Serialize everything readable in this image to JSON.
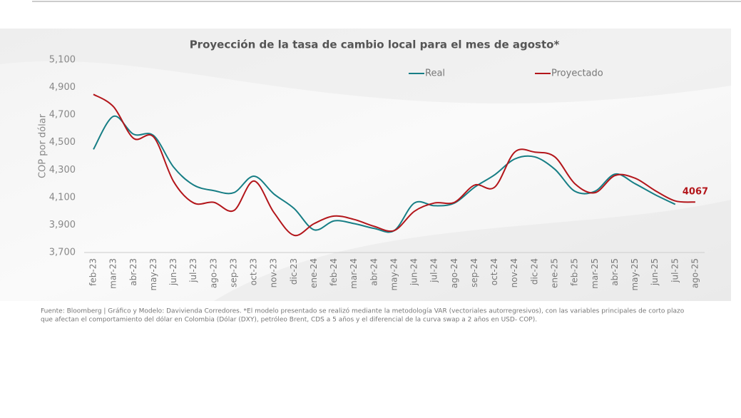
{
  "chart_data": {
    "type": "line",
    "title": "Proyección de la tasa de cambio local para el mes de agosto*",
    "y_label": "COP por dólar",
    "categories": [
      "feb-23",
      "mar-23",
      "abr-23",
      "may-23",
      "jun-23",
      "jul-23",
      "ago-23",
      "sep-23",
      "oct-23",
      "nov-23",
      "dic-23",
      "ene-24",
      "feb-24",
      "mar-24",
      "abr-24",
      "may-24",
      "jun-24",
      "jul-24",
      "ago-24",
      "sep-24",
      "oct-24",
      "nov-24",
      "dic-24",
      "ene-25",
      "feb-25",
      "mar-25",
      "abr-25",
      "may-25",
      "jun-25",
      "jul-25",
      "ago-25"
    ],
    "series": [
      {
        "name": "Real",
        "color": "#177e85",
        "values": [
          4450,
          4690,
          4560,
          4550,
          4320,
          4190,
          4150,
          4135,
          4255,
          4125,
          4020,
          3865,
          3930,
          3910,
          3875,
          3860,
          4060,
          4040,
          4060,
          4175,
          4265,
          4380,
          4395,
          4305,
          4145,
          4145,
          4270,
          4200,
          4120,
          4050,
          null
        ]
      },
      {
        "name": "Proyectado",
        "color": "#b3161b",
        "values": [
          4850,
          4760,
          4530,
          4540,
          4215,
          4060,
          4065,
          4005,
          4220,
          3990,
          3825,
          3910,
          3965,
          3940,
          3890,
          3860,
          4000,
          4060,
          4065,
          4190,
          4175,
          4430,
          4430,
          4395,
          4200,
          4135,
          4260,
          4240,
          4150,
          4075,
          4067
        ]
      }
    ],
    "ylim": [
      3700,
      5100
    ],
    "yticks": [
      {
        "value": 3700,
        "label": "3,700"
      },
      {
        "value": 3900,
        "label": "3,900"
      },
      {
        "value": 4100,
        "label": "4,100"
      },
      {
        "value": 4300,
        "label": "4,300"
      },
      {
        "value": 4500,
        "label": "4,500"
      },
      {
        "value": 4700,
        "label": "4,700"
      },
      {
        "value": 4900,
        "label": "4,900"
      },
      {
        "value": 5100,
        "label": "5,100"
      }
    ],
    "grid": false,
    "footnote": [
      "Fuente: Bloomberg | Gráfico y Modelo: Davivienda Corredores. *El modelo presentado se realizó mediante la metodología VAR (vectoriales autorregresivos), con las variables principales de corto plazo",
      "que afectan el comportamiento del dólar en Colombia (Dólar (DXY), petróleo Brent, CDS  a 5 años y el diferencial de la curva swap a 2 años en USD- COP)."
    ]
  }
}
